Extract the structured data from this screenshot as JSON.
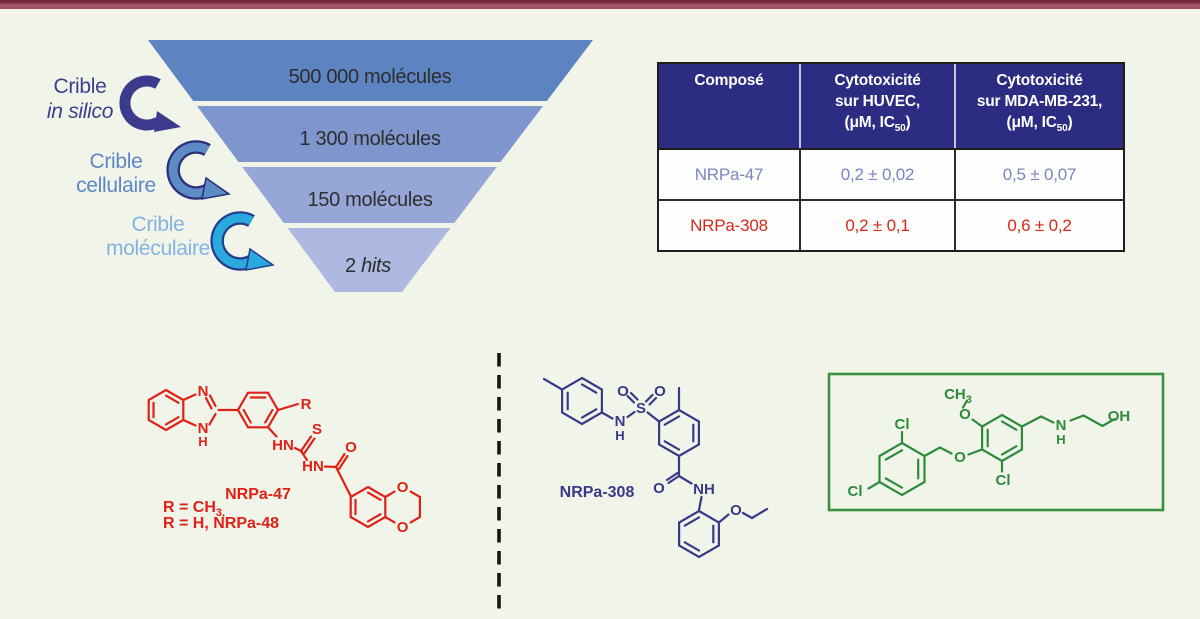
{
  "page": {
    "background": "#f1f4e8",
    "top_bar_colors": [
      "#7d2b3e",
      "#a6566e"
    ]
  },
  "funnel": {
    "tiers": [
      {
        "label": "500 000 molécules",
        "color": "#5d84c1"
      },
      {
        "label": "1 300 molécules",
        "color": "#7e96cd"
      },
      {
        "label": "150 molécules",
        "color": "#96a7d7"
      },
      {
        "prefix": "2 ",
        "label_italic": "hits",
        "color": "#aeb9e1"
      }
    ],
    "steps": [
      {
        "line1": "Crible",
        "line2": "in silico",
        "color": "#3b3f8e"
      },
      {
        "line1": "Crible",
        "line2": "cellulaire",
        "color": "#5d87c6"
      },
      {
        "line1": "Crible",
        "line2": "moléculaire",
        "color": "#84b3e2"
      }
    ],
    "arrow_colors": [
      "#3b3a8c",
      "#5c8bc6",
      "#2aa9de"
    ]
  },
  "table": {
    "header_bg": "#2c2d82",
    "columns": [
      {
        "title": "Composé"
      },
      {
        "line1": "Cytotoxicité",
        "line2": "sur HUVEC,",
        "ic_pre": "(μM, IC",
        "ic_sub": "50",
        "ic_post": ")"
      },
      {
        "line1": "Cytotoxicité",
        "line2": "sur MDA-MB-231,",
        "ic_pre": "(μM, IC",
        "ic_sub": "50",
        "ic_post": ")"
      }
    ],
    "rows": [
      {
        "compound": "NRPa-47",
        "huvec": "0,2 ± 0,02",
        "mda": "0,5 ± 0,07",
        "color": "#7a85c1"
      },
      {
        "compound": "NRPa-308",
        "huvec": "0,2 ± 0,1",
        "mda": "0,6 ± 0,2",
        "color": "#d6291d"
      }
    ]
  },
  "structures": {
    "red": {
      "color": "#df2118",
      "atoms": {
        "n_top": "N",
        "n_bottom": "N",
        "h_bottom": "H",
        "r": "R",
        "hn1": "HN",
        "s": "S",
        "hn2": "HN",
        "o_carbonyl": "O",
        "o_dioxane_top": "O",
        "o_dioxane_bottom": "O"
      },
      "captions": {
        "name": "NRPa-47",
        "r1_pre": "R = CH",
        "r1_sub": "3,",
        "r2": "R = H, NRPa-48"
      }
    },
    "blue": {
      "color": "#3b3889",
      "atoms": {
        "n": "N",
        "h": "H",
        "s": "S",
        "o_left": "O",
        "o_right": "O",
        "o_carbonyl": "O",
        "nh": "NH",
        "o_ethoxy": "O"
      },
      "captions": {
        "name": "NRPa-308"
      }
    },
    "green": {
      "color": "#2e8b3c",
      "box_color": "#3e8e41",
      "atoms": {
        "cl_top": "Cl",
        "cl_left": "Cl",
        "cl_bottom": "Cl",
        "ch3_pre": "CH",
        "ch3_sub": "3",
        "o_methoxy": "O",
        "o_ether": "O",
        "n": "N",
        "h": "H",
        "oh": "OH"
      }
    }
  }
}
